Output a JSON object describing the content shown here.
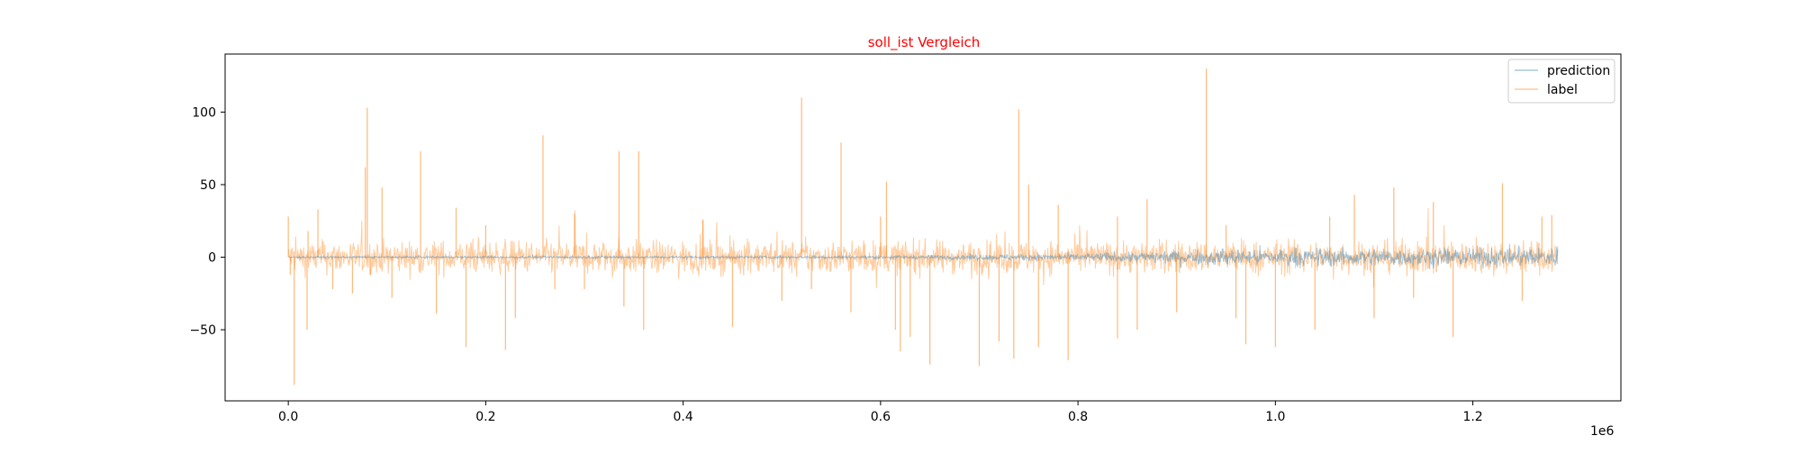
{
  "chart_data": {
    "type": "line",
    "title": "soll_ist Vergleich",
    "title_color": "#ff0000",
    "xlabel": "",
    "ylabel": "",
    "x_offset_label": "1e6",
    "x_ticks": [
      0.0,
      0.2,
      0.4,
      0.6,
      0.8,
      1.0,
      1.2
    ],
    "x_tick_labels": [
      "0.0",
      "0.2",
      "0.4",
      "0.6",
      "0.8",
      "1.0",
      "1.2"
    ],
    "y_ticks": [
      -50,
      0,
      50,
      100
    ],
    "y_tick_labels": [
      "−50",
      "0",
      "50",
      "100"
    ],
    "xlim": [
      -0.064,
      1.35
    ],
    "ylim": [
      -99,
      140
    ],
    "x_range": [
      0.0,
      1.286
    ],
    "grid": false,
    "legend_position": "top-right",
    "series": [
      {
        "name": "prediction",
        "color": "#1f77b4",
        "alpha": 0.4,
        "amplitude_profile": [
          [
            0.0,
            0.6
          ],
          [
            0.6,
            1.0
          ],
          [
            0.8,
            2.5
          ],
          [
            0.92,
            5.0
          ],
          [
            1.0,
            6.0
          ],
          [
            1.286,
            6.5
          ]
        ]
      },
      {
        "name": "label",
        "color": "#ff7f0e",
        "alpha": 0.4,
        "band": 12,
        "spikes": [
          [
            0.0,
            28
          ],
          [
            0.002,
            -12
          ],
          [
            0.006,
            -88
          ],
          [
            0.019,
            -50
          ],
          [
            0.02,
            18
          ],
          [
            0.03,
            33
          ],
          [
            0.045,
            -22
          ],
          [
            0.065,
            -25
          ],
          [
            0.078,
            62
          ],
          [
            0.08,
            103
          ],
          [
            0.083,
            -12
          ],
          [
            0.095,
            48
          ],
          [
            0.105,
            -28
          ],
          [
            0.134,
            73
          ],
          [
            0.15,
            -39
          ],
          [
            0.17,
            34
          ],
          [
            0.18,
            -62
          ],
          [
            0.2,
            22
          ],
          [
            0.22,
            -64
          ],
          [
            0.23,
            -42
          ],
          [
            0.258,
            84
          ],
          [
            0.27,
            -22
          ],
          [
            0.29,
            30
          ],
          [
            0.3,
            -22
          ],
          [
            0.335,
            73
          ],
          [
            0.34,
            -34
          ],
          [
            0.355,
            73
          ],
          [
            0.36,
            -50
          ],
          [
            0.42,
            26
          ],
          [
            0.45,
            -48
          ],
          [
            0.5,
            -30
          ],
          [
            0.52,
            110
          ],
          [
            0.53,
            -22
          ],
          [
            0.56,
            79
          ],
          [
            0.57,
            -38
          ],
          [
            0.6,
            28
          ],
          [
            0.606,
            52
          ],
          [
            0.615,
            -50
          ],
          [
            0.62,
            -65
          ],
          [
            0.63,
            -55
          ],
          [
            0.65,
            -74
          ],
          [
            0.7,
            -75
          ],
          [
            0.72,
            -58
          ],
          [
            0.735,
            -70
          ],
          [
            0.74,
            102
          ],
          [
            0.75,
            50
          ],
          [
            0.76,
            -62
          ],
          [
            0.78,
            36
          ],
          [
            0.79,
            -71
          ],
          [
            0.84,
            28
          ],
          [
            0.84,
            -56
          ],
          [
            0.86,
            -50
          ],
          [
            0.87,
            40
          ],
          [
            0.9,
            -38
          ],
          [
            0.93,
            130
          ],
          [
            0.95,
            22
          ],
          [
            0.96,
            -42
          ],
          [
            0.97,
            -60
          ],
          [
            1.0,
            -62
          ],
          [
            1.04,
            -50
          ],
          [
            1.055,
            28
          ],
          [
            1.08,
            43
          ],
          [
            1.1,
            -42
          ],
          [
            1.12,
            48
          ],
          [
            1.14,
            -28
          ],
          [
            1.16,
            38
          ],
          [
            1.18,
            -55
          ],
          [
            1.23,
            51
          ],
          [
            1.25,
            -30
          ],
          [
            1.27,
            28
          ],
          [
            1.28,
            29
          ]
        ]
      }
    ]
  }
}
